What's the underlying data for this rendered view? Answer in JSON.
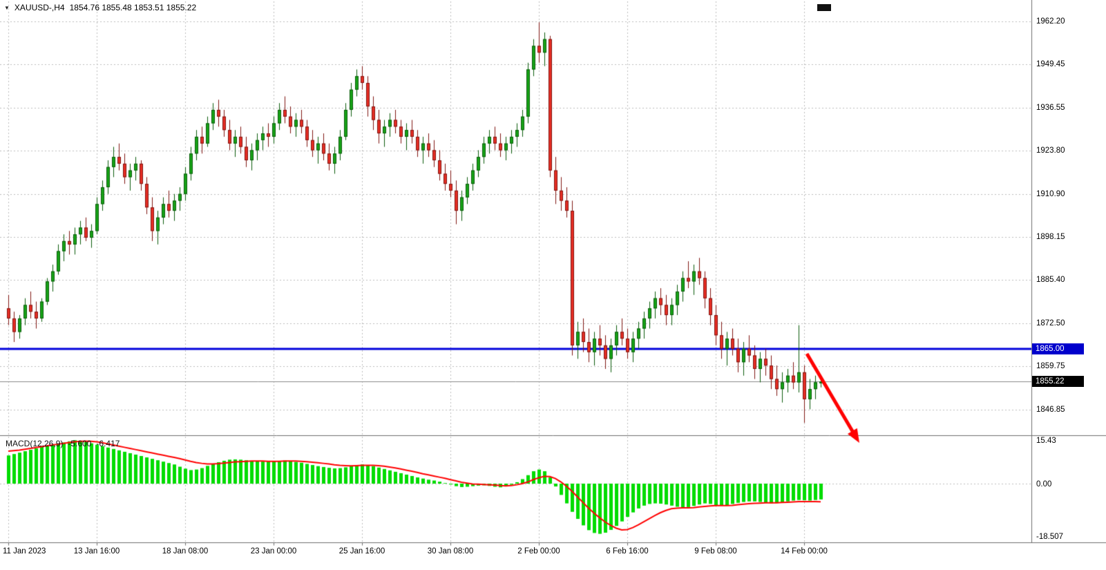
{
  "header": {
    "dropdown_icon": "▼",
    "symbol": "XAUUSD-,H4",
    "ohlc": "1854.76 1855.48 1853.51 1855.22"
  },
  "price_axis": {
    "hline_label": "1865.00",
    "current_label": "1855.22"
  },
  "macd_panel": {
    "label": "MACD(12,26,9)",
    "value_main": "-5.600",
    "value_signal": "-6.417"
  },
  "colors": {
    "up": "#17a317",
    "up_border": "#0a5c0a",
    "down": "#e62e24",
    "down_border": "#801511",
    "macd_hist": "#00dc00",
    "macd_signal": "#ff0000",
    "hline": "#0000dc",
    "tag_hline_bg": "#0000cc",
    "tag_current_bg": "#000000",
    "grid": "#bcbcbc",
    "separator": "#6e6e6e",
    "current_line": "#888888",
    "arrow": "#ff0000",
    "text": "#000000"
  },
  "chart_data": {
    "type": "candlestick",
    "title": "XAUUSD- H4 with MACD(12,26,9)",
    "symbol": "XAUUSD-",
    "timeframe": "H4",
    "price_range": [
      1839,
      1967
    ],
    "grid": true,
    "hline": 1865.0,
    "current_price": 1855.22,
    "current_ohlc": [
      1854.76,
      1855.48,
      1853.51,
      1855.22
    ],
    "price_ticks": [
      "1962.20",
      "1949.45",
      "1936.55",
      "1923.80",
      "1910.90",
      "1898.15",
      "1885.40",
      "1872.50",
      "1859.75",
      "1846.85"
    ],
    "time_ticks": [
      {
        "label": "11 Jan 2023",
        "index": 0
      },
      {
        "label": "13 Jan 16:00",
        "index": 16
      },
      {
        "label": "18 Jan 08:00",
        "index": 32
      },
      {
        "label": "23 Jan 00:00",
        "index": 48
      },
      {
        "label": "25 Jan 16:00",
        "index": 64
      },
      {
        "label": "30 Jan 08:00",
        "index": 80
      },
      {
        "label": "2 Feb 00:00",
        "index": 96
      },
      {
        "label": "6 Feb 16:00",
        "index": 112
      },
      {
        "label": "9 Feb 08:00",
        "index": 128
      },
      {
        "label": "14 Feb 00:00",
        "index": 144
      }
    ],
    "candles": [
      [
        1877,
        1881,
        1872,
        1874
      ],
      [
        1874,
        1876,
        1867,
        1870
      ],
      [
        1870,
        1875,
        1868,
        1874
      ],
      [
        1874,
        1880,
        1872,
        1878
      ],
      [
        1878,
        1882,
        1874,
        1876
      ],
      [
        1876,
        1879,
        1871,
        1874
      ],
      [
        1874,
        1880,
        1873,
        1879
      ],
      [
        1879,
        1886,
        1878,
        1885
      ],
      [
        1885,
        1890,
        1882,
        1888
      ],
      [
        1888,
        1896,
        1887,
        1894
      ],
      [
        1894,
        1899,
        1891,
        1897
      ],
      [
        1897,
        1900,
        1893,
        1896
      ],
      [
        1896,
        1901,
        1893,
        1899
      ],
      [
        1899,
        1903,
        1896,
        1901
      ],
      [
        1901,
        1904,
        1897,
        1898
      ],
      [
        1898,
        1902,
        1895,
        1900
      ],
      [
        1900,
        1910,
        1899,
        1908
      ],
      [
        1908,
        1915,
        1906,
        1913
      ],
      [
        1913,
        1921,
        1911,
        1919
      ],
      [
        1919,
        1925,
        1916,
        1922
      ],
      [
        1922,
        1926,
        1918,
        1920
      ],
      [
        1920,
        1923,
        1914,
        1916
      ],
      [
        1916,
        1920,
        1912,
        1918
      ],
      [
        1918,
        1922,
        1915,
        1920
      ],
      [
        1920,
        1921,
        1912,
        1914
      ],
      [
        1914,
        1916,
        1905,
        1907
      ],
      [
        1907,
        1910,
        1897,
        1900
      ],
      [
        1900,
        1906,
        1896,
        1904
      ],
      [
        1904,
        1910,
        1902,
        1908
      ],
      [
        1908,
        1912,
        1904,
        1906
      ],
      [
        1906,
        1911,
        1903,
        1909
      ],
      [
        1909,
        1913,
        1906,
        1911
      ],
      [
        1911,
        1919,
        1909,
        1917
      ],
      [
        1917,
        1925,
        1915,
        1923
      ],
      [
        1923,
        1930,
        1921,
        1928
      ],
      [
        1928,
        1931,
        1923,
        1926
      ],
      [
        1926,
        1934,
        1925,
        1932
      ],
      [
        1932,
        1938,
        1930,
        1936
      ],
      [
        1936,
        1939,
        1931,
        1934
      ],
      [
        1934,
        1936,
        1928,
        1930
      ],
      [
        1930,
        1933,
        1924,
        1926
      ],
      [
        1926,
        1930,
        1922,
        1928
      ],
      [
        1928,
        1931,
        1923,
        1925
      ],
      [
        1925,
        1928,
        1919,
        1921
      ],
      [
        1921,
        1926,
        1918,
        1924
      ],
      [
        1924,
        1929,
        1921,
        1927
      ],
      [
        1927,
        1931,
        1924,
        1929
      ],
      [
        1929,
        1932,
        1925,
        1928
      ],
      [
        1928,
        1934,
        1926,
        1932
      ],
      [
        1932,
        1938,
        1930,
        1936
      ],
      [
        1936,
        1940,
        1932,
        1934
      ],
      [
        1934,
        1937,
        1929,
        1931
      ],
      [
        1931,
        1935,
        1928,
        1933
      ],
      [
        1933,
        1936,
        1929,
        1931
      ],
      [
        1931,
        1933,
        1925,
        1927
      ],
      [
        1927,
        1930,
        1922,
        1924
      ],
      [
        1924,
        1928,
        1920,
        1926
      ],
      [
        1926,
        1929,
        1921,
        1923
      ],
      [
        1923,
        1926,
        1918,
        1920
      ],
      [
        1920,
        1925,
        1917,
        1923
      ],
      [
        1923,
        1930,
        1921,
        1928
      ],
      [
        1928,
        1938,
        1927,
        1936
      ],
      [
        1936,
        1944,
        1934,
        1942
      ],
      [
        1942,
        1948,
        1940,
        1946
      ],
      [
        1946,
        1949,
        1942,
        1944
      ],
      [
        1944,
        1946,
        1934,
        1937
      ],
      [
        1937,
        1940,
        1930,
        1933
      ],
      [
        1933,
        1936,
        1926,
        1929
      ],
      [
        1929,
        1933,
        1925,
        1931
      ],
      [
        1931,
        1935,
        1928,
        1933
      ],
      [
        1933,
        1936,
        1929,
        1931
      ],
      [
        1931,
        1933,
        1926,
        1928
      ],
      [
        1928,
        1932,
        1924,
        1930
      ],
      [
        1930,
        1933,
        1926,
        1928
      ],
      [
        1928,
        1930,
        1922,
        1924
      ],
      [
        1924,
        1928,
        1920,
        1926
      ],
      [
        1926,
        1929,
        1922,
        1924
      ],
      [
        1924,
        1927,
        1919,
        1921
      ],
      [
        1921,
        1924,
        1915,
        1917
      ],
      [
        1917,
        1920,
        1912,
        1914
      ],
      [
        1914,
        1918,
        1910,
        1912
      ],
      [
        1912,
        1915,
        1902,
        1906
      ],
      [
        1906,
        1912,
        1903,
        1910
      ],
      [
        1910,
        1916,
        1908,
        1914
      ],
      [
        1914,
        1920,
        1912,
        1918
      ],
      [
        1918,
        1924,
        1916,
        1922
      ],
      [
        1922,
        1928,
        1920,
        1926
      ],
      [
        1926,
        1930,
        1923,
        1928
      ],
      [
        1928,
        1931,
        1924,
        1926
      ],
      [
        1926,
        1929,
        1922,
        1924
      ],
      [
        1924,
        1928,
        1921,
        1926
      ],
      [
        1926,
        1930,
        1923,
        1928
      ],
      [
        1928,
        1932,
        1925,
        1930
      ],
      [
        1930,
        1936,
        1928,
        1934
      ],
      [
        1934,
        1950,
        1932,
        1948
      ],
      [
        1948,
        1957,
        1946,
        1955
      ],
      [
        1955,
        1962,
        1950,
        1953
      ],
      [
        1953,
        1959,
        1949,
        1957
      ],
      [
        1957,
        1958,
        1916,
        1918
      ],
      [
        1918,
        1922,
        1908,
        1912
      ],
      [
        1912,
        1916,
        1906,
        1909
      ],
      [
        1909,
        1913,
        1904,
        1906
      ],
      [
        1906,
        1909,
        1863,
        1866
      ],
      [
        1866,
        1873,
        1862,
        1870
      ],
      [
        1870,
        1874,
        1864,
        1867
      ],
      [
        1867,
        1871,
        1861,
        1864
      ],
      [
        1864,
        1870,
        1860,
        1868
      ],
      [
        1868,
        1872,
        1863,
        1866
      ],
      [
        1866,
        1869,
        1859,
        1862
      ],
      [
        1862,
        1868,
        1858,
        1866
      ],
      [
        1866,
        1872,
        1863,
        1870
      ],
      [
        1870,
        1874,
        1866,
        1868
      ],
      [
        1868,
        1871,
        1862,
        1864
      ],
      [
        1864,
        1870,
        1861,
        1868
      ],
      [
        1868,
        1873,
        1865,
        1871
      ],
      [
        1871,
        1876,
        1868,
        1874
      ],
      [
        1874,
        1879,
        1871,
        1877
      ],
      [
        1877,
        1882,
        1874,
        1880
      ],
      [
        1880,
        1883,
        1875,
        1878
      ],
      [
        1878,
        1881,
        1872,
        1875
      ],
      [
        1875,
        1880,
        1872,
        1878
      ],
      [
        1878,
        1884,
        1875,
        1882
      ],
      [
        1882,
        1888,
        1879,
        1886
      ],
      [
        1886,
        1891,
        1883,
        1885
      ],
      [
        1885,
        1890,
        1881,
        1888
      ],
      [
        1888,
        1892,
        1884,
        1886
      ],
      [
        1886,
        1888,
        1877,
        1880
      ],
      [
        1880,
        1883,
        1872,
        1875
      ],
      [
        1875,
        1878,
        1866,
        1869
      ],
      [
        1869,
        1873,
        1862,
        1865
      ],
      [
        1865,
        1870,
        1860,
        1868
      ],
      [
        1868,
        1871,
        1863,
        1865
      ],
      [
        1865,
        1868,
        1858,
        1861
      ],
      [
        1861,
        1867,
        1857,
        1865
      ],
      [
        1865,
        1869,
        1861,
        1863
      ],
      [
        1863,
        1866,
        1856,
        1859
      ],
      [
        1859,
        1864,
        1855,
        1862
      ],
      [
        1862,
        1865,
        1857,
        1860
      ],
      [
        1860,
        1863,
        1853,
        1856
      ],
      [
        1856,
        1860,
        1851,
        1853
      ],
      [
        1853,
        1858,
        1849,
        1855
      ],
      [
        1855,
        1859,
        1852,
        1857
      ],
      [
        1857,
        1861,
        1853,
        1855
      ],
      [
        1855,
        1872,
        1852,
        1858
      ],
      [
        1858,
        1860,
        1843,
        1850
      ],
      [
        1850,
        1856,
        1847,
        1853
      ],
      [
        1853,
        1857,
        1850,
        1855
      ],
      [
        1854.76,
        1855.48,
        1853.51,
        1855.22
      ]
    ],
    "macd": {
      "params": "12,26,9",
      "range": [
        -18.507,
        15.43
      ],
      "ticks": [
        {
          "label": "15.43",
          "value": 15.43
        },
        {
          "label": "0.00",
          "value": 0
        },
        {
          "label": "-18.507",
          "value": -18.507
        }
      ],
      "histogram": [
        10,
        10.5,
        11,
        11.5,
        12,
        12.5,
        13,
        13.3,
        13.8,
        14.2,
        14.6,
        15,
        15.4,
        15.2,
        14.8,
        14.3,
        13.8,
        13.3,
        12.8,
        12.3,
        11.8,
        11.3,
        10.8,
        10.3,
        9.8,
        9.3,
        8.8,
        8.3,
        7.8,
        7.3,
        6.8,
        6,
        5.3,
        4.8,
        5,
        5.5,
        6.3,
        7,
        7.6,
        8.1,
        8.5,
        8.6,
        8.5,
        8.3,
        8.1,
        7.9,
        7.8,
        7.8,
        7.9,
        8.1,
        8.2,
        8,
        7.7,
        7.4,
        7,
        6.6,
        6.2,
        5.9,
        5.6,
        5.4,
        5.5,
        5.8,
        6.2,
        6.6,
        6.8,
        6.6,
        6.2,
        5.7,
        5.2,
        4.7,
        4.2,
        3.7,
        3.2,
        2.7,
        2.2,
        1.8,
        1.4,
        1.1,
        0.7,
        0.2,
        -0.3,
        -0.9,
        -1.2,
        -1.1,
        -0.9,
        -0.7,
        -0.6,
        -0.8,
        -1.1,
        -1.3,
        -1,
        -0.4,
        0.5,
        1.6,
        3,
        4.4,
        5,
        4.4,
        2.2,
        -1,
        -4,
        -7,
        -10,
        -12.5,
        -14.8,
        -16.5,
        -17.5,
        -17.8,
        -17.4,
        -16.4,
        -15,
        -13.4,
        -11.8,
        -10.2,
        -8.8,
        -7.8,
        -7.2,
        -7,
        -7.1,
        -7.4,
        -7.8,
        -8.2,
        -8.4,
        -8.3,
        -7.9,
        -7.4,
        -7,
        -7.2,
        -7.6,
        -7.8,
        -7.6,
        -7.2,
        -6.8,
        -6.5,
        -6.3,
        -6.3,
        -6.5,
        -6.8,
        -7,
        -6.9,
        -6.6,
        -6.3,
        -6,
        -5.8,
        -5.9,
        -6,
        -5.8,
        -5.6
      ],
      "signal": [
        11.5,
        11.7,
        11.9,
        12.2,
        12.5,
        12.8,
        13.1,
        13.4,
        13.7,
        14,
        14.3,
        14.6,
        14.8,
        15,
        15.1,
        15,
        14.8,
        14.5,
        14.1,
        13.7,
        13.3,
        12.9,
        12.5,
        12.1,
        11.7,
        11.3,
        10.9,
        10.5,
        10.1,
        9.7,
        9.3,
        8.9,
        8.4,
        7.9,
        7.5,
        7.2,
        7,
        7,
        7.1,
        7.3,
        7.5,
        7.7,
        7.8,
        7.9,
        8,
        8,
        8,
        7.9,
        7.9,
        7.9,
        8,
        8,
        8,
        7.9,
        7.8,
        7.6,
        7.4,
        7.2,
        7,
        6.7,
        6.5,
        6.4,
        6.3,
        6.4,
        6.5,
        6.5,
        6.5,
        6.4,
        6.2,
        5.9,
        5.6,
        5.2,
        4.8,
        4.4,
        4,
        3.5,
        3.1,
        2.7,
        2.3,
        1.9,
        1.4,
        1,
        0.5,
        0.2,
        -0.1,
        -0.2,
        -0.3,
        -0.4,
        -0.5,
        -0.7,
        -0.8,
        -0.7,
        -0.4,
        0,
        0.6,
        1.4,
        2.1,
        2.6,
        2.5,
        1.8,
        0.6,
        -0.9,
        -2.7,
        -4.7,
        -6.7,
        -8.7,
        -10.5,
        -12.1,
        -13.6,
        -14.8,
        -15.8,
        -16.4,
        -16.3,
        -15.6,
        -14.6,
        -13.5,
        -12.4,
        -11.3,
        -10.3,
        -9.5,
        -8.9,
        -8.7,
        -8.6,
        -8.6,
        -8.5,
        -8.3,
        -8.1,
        -7.9,
        -7.8,
        -7.8,
        -7.8,
        -7.7,
        -7.5,
        -7.3,
        -7.1,
        -7,
        -6.9,
        -6.8,
        -6.8,
        -6.8,
        -6.7,
        -6.6,
        -6.5,
        -6.4,
        -6.4,
        -6.4,
        -6.4,
        -6.417
      ]
    },
    "annotation_arrow": {
      "from_index": 144.5,
      "from_price": 1863.5,
      "to_index": 154,
      "to_price": 1837,
      "color": "#ff0000"
    }
  }
}
